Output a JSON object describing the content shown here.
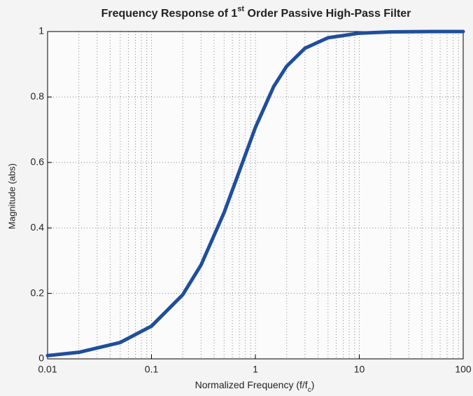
{
  "chart_data": {
    "type": "line",
    "title": [
      "Frequency Response of 1",
      "st",
      " Order Passive High-Pass Filter"
    ],
    "xlabel": [
      "Normalized Frequency (f/f",
      "c",
      ")"
    ],
    "ylabel": "Magnitude (abs)",
    "x": [
      0.01,
      0.02,
      0.05,
      0.1,
      0.2,
      0.3,
      0.5,
      0.7,
      1,
      1.5,
      2,
      3,
      5,
      10,
      20,
      50,
      100
    ],
    "values": [
      0.01,
      0.02,
      0.05,
      0.1,
      0.196,
      0.287,
      0.447,
      0.573,
      0.707,
      0.832,
      0.894,
      0.949,
      0.981,
      0.995,
      0.999,
      1,
      1
    ],
    "color": "#1f4e9c",
    "xscale": "log",
    "xlim": [
      0.01,
      100
    ],
    "xticks": [
      0.01,
      0.1,
      1,
      10,
      100
    ],
    "ylim": [
      0,
      1
    ],
    "yticks": [
      0,
      0.2,
      0.4,
      0.6,
      0.8,
      1
    ],
    "grid": true
  }
}
